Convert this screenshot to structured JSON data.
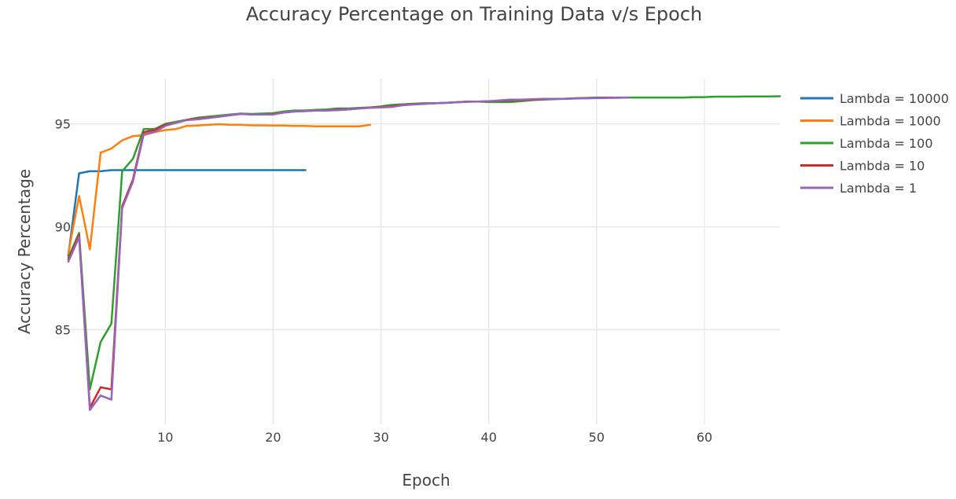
{
  "chart_data": {
    "type": "line",
    "title": "Accuracy Percentage on Training Data v/s Epoch",
    "xlabel": "Epoch",
    "ylabel": "Accuracy Percentage",
    "xlim": [
      0.5,
      67
    ],
    "ylim": [
      80.4,
      97.2
    ],
    "xticks": [
      10,
      20,
      30,
      40,
      50,
      60
    ],
    "yticks": [
      85,
      90,
      95
    ],
    "grid": true,
    "legend_position": "right",
    "series": [
      {
        "name": "Lambda = 10000",
        "color": "#1f77b4",
        "x": [
          1,
          2,
          3,
          4,
          5,
          6,
          7,
          8,
          9,
          10,
          11,
          12,
          13,
          14,
          15,
          16,
          17,
          18,
          19,
          20,
          21,
          22,
          23
        ],
        "y": [
          88.6,
          92.6,
          92.7,
          92.7,
          92.75,
          92.75,
          92.75,
          92.75,
          92.75,
          92.75,
          92.75,
          92.75,
          92.75,
          92.75,
          92.75,
          92.75,
          92.75,
          92.75,
          92.75,
          92.75,
          92.75,
          92.75,
          92.75
        ]
      },
      {
        "name": "Lambda = 1000",
        "color": "#ff7f0e",
        "x": [
          1,
          2,
          3,
          4,
          5,
          6,
          7,
          8,
          9,
          10,
          11,
          12,
          13,
          14,
          15,
          16,
          17,
          18,
          19,
          20,
          21,
          22,
          23,
          24,
          25,
          26,
          27,
          28,
          29
        ],
        "y": [
          88.7,
          91.5,
          88.9,
          93.6,
          93.8,
          94.2,
          94.4,
          94.45,
          94.6,
          94.7,
          94.75,
          94.9,
          94.92,
          94.95,
          94.98,
          94.95,
          94.95,
          94.93,
          94.93,
          94.92,
          94.92,
          94.9,
          94.9,
          94.88,
          94.88,
          94.88,
          94.88,
          94.88,
          94.95
        ]
      },
      {
        "name": "Lambda = 100",
        "color": "#2ca02c",
        "x": [
          1,
          2,
          3,
          4,
          5,
          6,
          7,
          8,
          9,
          10,
          11,
          12,
          13,
          14,
          15,
          16,
          17,
          18,
          19,
          20,
          21,
          22,
          23,
          24,
          25,
          26,
          27,
          28,
          29,
          30,
          31,
          32,
          33,
          34,
          35,
          36,
          37,
          38,
          39,
          40,
          41,
          42,
          43,
          44,
          45,
          46,
          47,
          48,
          49,
          50,
          51,
          52,
          53,
          54,
          55,
          56,
          57,
          58,
          59,
          60,
          61,
          62,
          63,
          64,
          65,
          66,
          67
        ],
        "y": [
          88.5,
          89.7,
          82.1,
          84.4,
          85.3,
          92.7,
          93.3,
          94.75,
          94.75,
          95.0,
          95.1,
          95.2,
          95.3,
          95.35,
          95.4,
          95.45,
          95.5,
          95.48,
          95.5,
          95.52,
          95.6,
          95.65,
          95.65,
          95.68,
          95.7,
          95.75,
          95.75,
          95.78,
          95.8,
          95.85,
          95.92,
          95.95,
          95.98,
          96.0,
          96.0,
          96.02,
          96.05,
          96.08,
          96.08,
          96.06,
          96.06,
          96.06,
          96.1,
          96.15,
          96.18,
          96.2,
          96.22,
          96.24,
          96.26,
          96.28,
          96.28,
          96.28,
          96.28,
          96.28,
          96.28,
          96.28,
          96.28,
          96.28,
          96.3,
          96.3,
          96.32,
          96.32,
          96.32,
          96.33,
          96.33,
          96.33,
          96.34
        ]
      },
      {
        "name": "Lambda = 10",
        "color": "#d62728",
        "x": [
          1,
          2,
          3,
          4,
          5,
          6,
          7,
          8,
          9,
          10,
          11,
          12,
          13,
          14,
          15,
          16,
          17,
          18,
          19,
          20,
          21,
          22,
          23,
          24,
          25,
          26,
          27,
          28,
          29,
          30,
          31,
          32,
          33,
          34,
          35,
          36,
          37,
          38,
          39,
          40,
          41,
          42,
          43,
          44,
          45,
          46,
          47,
          48,
          49,
          50,
          51,
          52,
          53
        ],
        "y": [
          88.4,
          89.6,
          81.2,
          82.2,
          82.1,
          91.0,
          92.3,
          94.6,
          94.7,
          94.95,
          95.05,
          95.2,
          95.25,
          95.3,
          95.35,
          95.42,
          95.48,
          95.45,
          95.45,
          95.47,
          95.55,
          95.6,
          95.62,
          95.65,
          95.65,
          95.68,
          95.7,
          95.75,
          95.8,
          95.82,
          95.85,
          95.92,
          95.95,
          95.98,
          96.0,
          96.02,
          96.05,
          96.08,
          96.08,
          96.1,
          96.12,
          96.15,
          96.16,
          96.18,
          96.2,
          96.22,
          96.22,
          96.24,
          96.25,
          96.26,
          96.27,
          96.27,
          96.28
        ]
      },
      {
        "name": "Lambda = 1",
        "color": "#9467bd",
        "x": [
          1,
          2,
          3,
          4,
          5,
          6,
          7,
          8,
          9,
          10,
          11,
          12,
          13,
          14,
          15,
          16,
          17,
          18,
          19,
          20,
          21,
          22,
          23,
          24,
          25,
          26,
          27,
          28,
          29,
          30,
          31,
          32,
          33,
          34,
          35,
          36,
          37,
          38,
          39,
          40,
          41,
          42,
          43,
          44,
          45,
          46,
          47,
          48,
          49,
          50,
          51,
          52,
          53
        ],
        "y": [
          88.3,
          89.5,
          81.1,
          81.8,
          81.6,
          90.9,
          92.2,
          94.5,
          94.6,
          94.9,
          95.05,
          95.18,
          95.22,
          95.28,
          95.35,
          95.42,
          95.5,
          95.45,
          95.45,
          95.45,
          95.55,
          95.6,
          95.62,
          95.65,
          95.65,
          95.66,
          95.7,
          95.75,
          95.78,
          95.8,
          95.82,
          95.9,
          95.94,
          95.97,
          96.0,
          96.02,
          96.05,
          96.07,
          96.08,
          96.1,
          96.14,
          96.18,
          96.18,
          96.2,
          96.22,
          96.22,
          96.22,
          96.23,
          96.24,
          96.25,
          96.26,
          96.27,
          96.28
        ]
      }
    ]
  }
}
